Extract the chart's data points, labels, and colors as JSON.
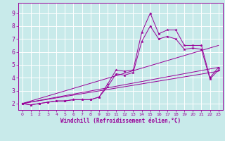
{
  "bg_color": "#c8eaea",
  "grid_color": "#ffffff",
  "line_color": "#990099",
  "xlabel": "Windchill (Refroidissement éolien,°C)",
  "xlim": [
    -0.5,
    23.5
  ],
  "ylim": [
    1.5,
    9.8
  ],
  "xticks": [
    0,
    1,
    2,
    3,
    4,
    5,
    6,
    7,
    8,
    9,
    10,
    11,
    12,
    13,
    14,
    15,
    16,
    17,
    18,
    19,
    20,
    21,
    22,
    23
  ],
  "yticks": [
    2,
    3,
    4,
    5,
    6,
    7,
    8,
    9
  ],
  "series1_x": [
    0,
    1,
    2,
    3,
    4,
    5,
    6,
    7,
    8,
    9,
    10,
    11,
    12,
    13,
    14,
    15,
    16,
    17,
    18,
    19,
    20,
    21,
    22,
    23
  ],
  "series1_y": [
    2.0,
    1.9,
    2.0,
    2.1,
    2.2,
    2.2,
    2.3,
    2.3,
    2.3,
    2.5,
    3.5,
    4.6,
    4.5,
    4.6,
    7.5,
    9.0,
    7.4,
    7.7,
    7.7,
    6.5,
    6.5,
    6.5,
    4.0,
    4.8
  ],
  "series2_x": [
    0,
    1,
    2,
    3,
    4,
    5,
    6,
    7,
    8,
    9,
    10,
    11,
    12,
    13,
    14,
    15,
    16,
    17,
    18,
    19,
    20,
    21,
    22,
    23
  ],
  "series2_y": [
    2.0,
    1.9,
    2.0,
    2.1,
    2.2,
    2.2,
    2.3,
    2.3,
    2.3,
    2.5,
    3.3,
    4.3,
    4.2,
    4.4,
    6.8,
    8.0,
    7.0,
    7.2,
    7.0,
    6.2,
    6.3,
    6.2,
    3.9,
    4.6
  ],
  "line1_x": [
    0,
    23
  ],
  "line1_y": [
    2.0,
    6.5
  ],
  "line2_x": [
    0,
    23
  ],
  "line2_y": [
    2.0,
    4.8
  ],
  "line3_x": [
    0,
    23
  ],
  "line3_y": [
    2.0,
    4.5
  ]
}
